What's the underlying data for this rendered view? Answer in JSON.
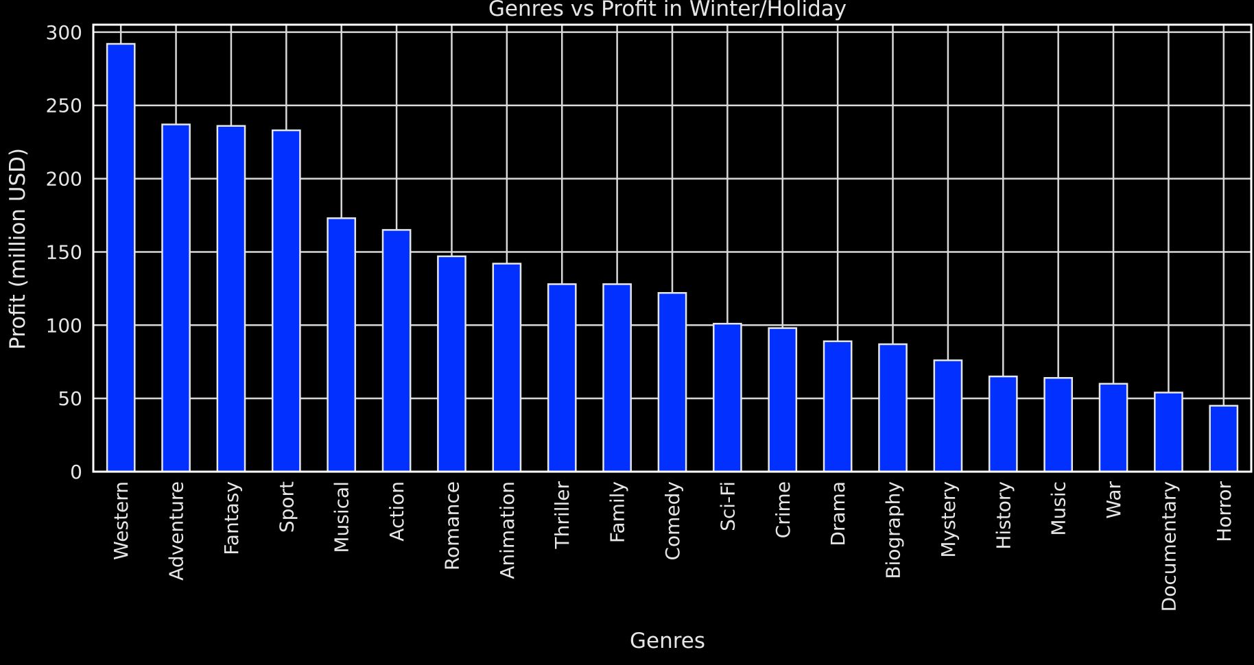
{
  "chart_data": {
    "type": "bar",
    "title": "Genres vs Profit in Winter/Holiday",
    "xlabel": "Genres",
    "ylabel": "Profit (million USD)",
    "categories": [
      "Western",
      "Adventure",
      "Fantasy",
      "Sport",
      "Musical",
      "Action",
      "Romance",
      "Animation",
      "Thriller",
      "Family",
      "Comedy",
      "Sci-Fi",
      "Crime",
      "Drama",
      "Biography",
      "Mystery",
      "History",
      "Music",
      "War",
      "Documentary",
      "Horror"
    ],
    "values": [
      292,
      237,
      236,
      233,
      173,
      165,
      147,
      142,
      128,
      128,
      122,
      101,
      98,
      89,
      87,
      76,
      65,
      64,
      60,
      54,
      45
    ],
    "ylim": [
      0,
      300
    ],
    "yticks": [
      0,
      50,
      100,
      150,
      200,
      250,
      300
    ],
    "grid": true,
    "legend": false,
    "colors": {
      "background": "#000000",
      "bar_fill": "#0230FF",
      "bar_edge": "#E6E6E6",
      "grid": "#D9D9D9",
      "axes": "#FFFFFF",
      "text": "#E6E6E6"
    }
  }
}
